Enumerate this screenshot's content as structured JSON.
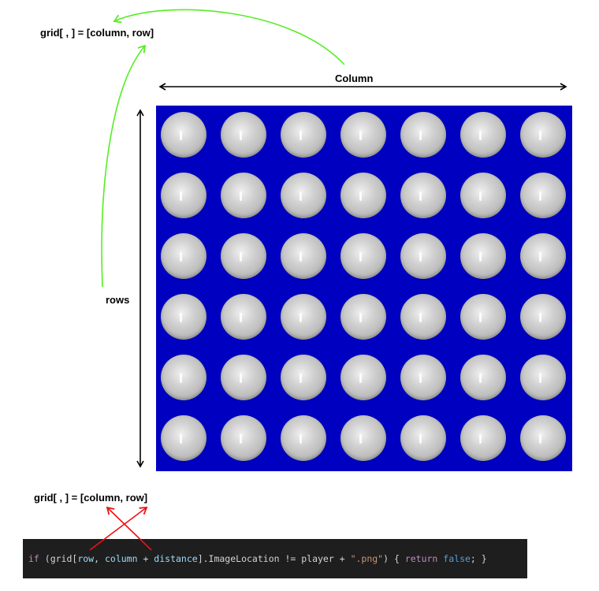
{
  "labels": {
    "top_formula": "grid[ , ] = [column, row]",
    "column_axis": "Column",
    "rows_axis": "rows",
    "bottom_formula": "grid[ , ] = [column, row]"
  },
  "board": {
    "columns": 7,
    "rows": 6,
    "background_color": "#0000c0",
    "disc_color": "#c8c8c8"
  },
  "code": {
    "tokens": [
      {
        "text": "if",
        "kind": "kw"
      },
      {
        "text": " (grid[",
        "kind": "plain"
      },
      {
        "text": "row",
        "kind": "var"
      },
      {
        "text": ", ",
        "kind": "plain"
      },
      {
        "text": "column",
        "kind": "var"
      },
      {
        "text": " + ",
        "kind": "plain"
      },
      {
        "text": "distance",
        "kind": "var"
      },
      {
        "text": "].ImageLocation != player + ",
        "kind": "plain"
      },
      {
        "text": "\".png\"",
        "kind": "str"
      },
      {
        "text": ") { ",
        "kind": "plain"
      },
      {
        "text": "return",
        "kind": "kw"
      },
      {
        "text": " ",
        "kind": "plain"
      },
      {
        "text": "false",
        "kind": "bool"
      },
      {
        "text": "; }",
        "kind": "plain"
      }
    ]
  },
  "colors": {
    "green_arrow": "#55ee22",
    "red_cross": "#ee1111",
    "code_background": "#1e1e1e"
  }
}
